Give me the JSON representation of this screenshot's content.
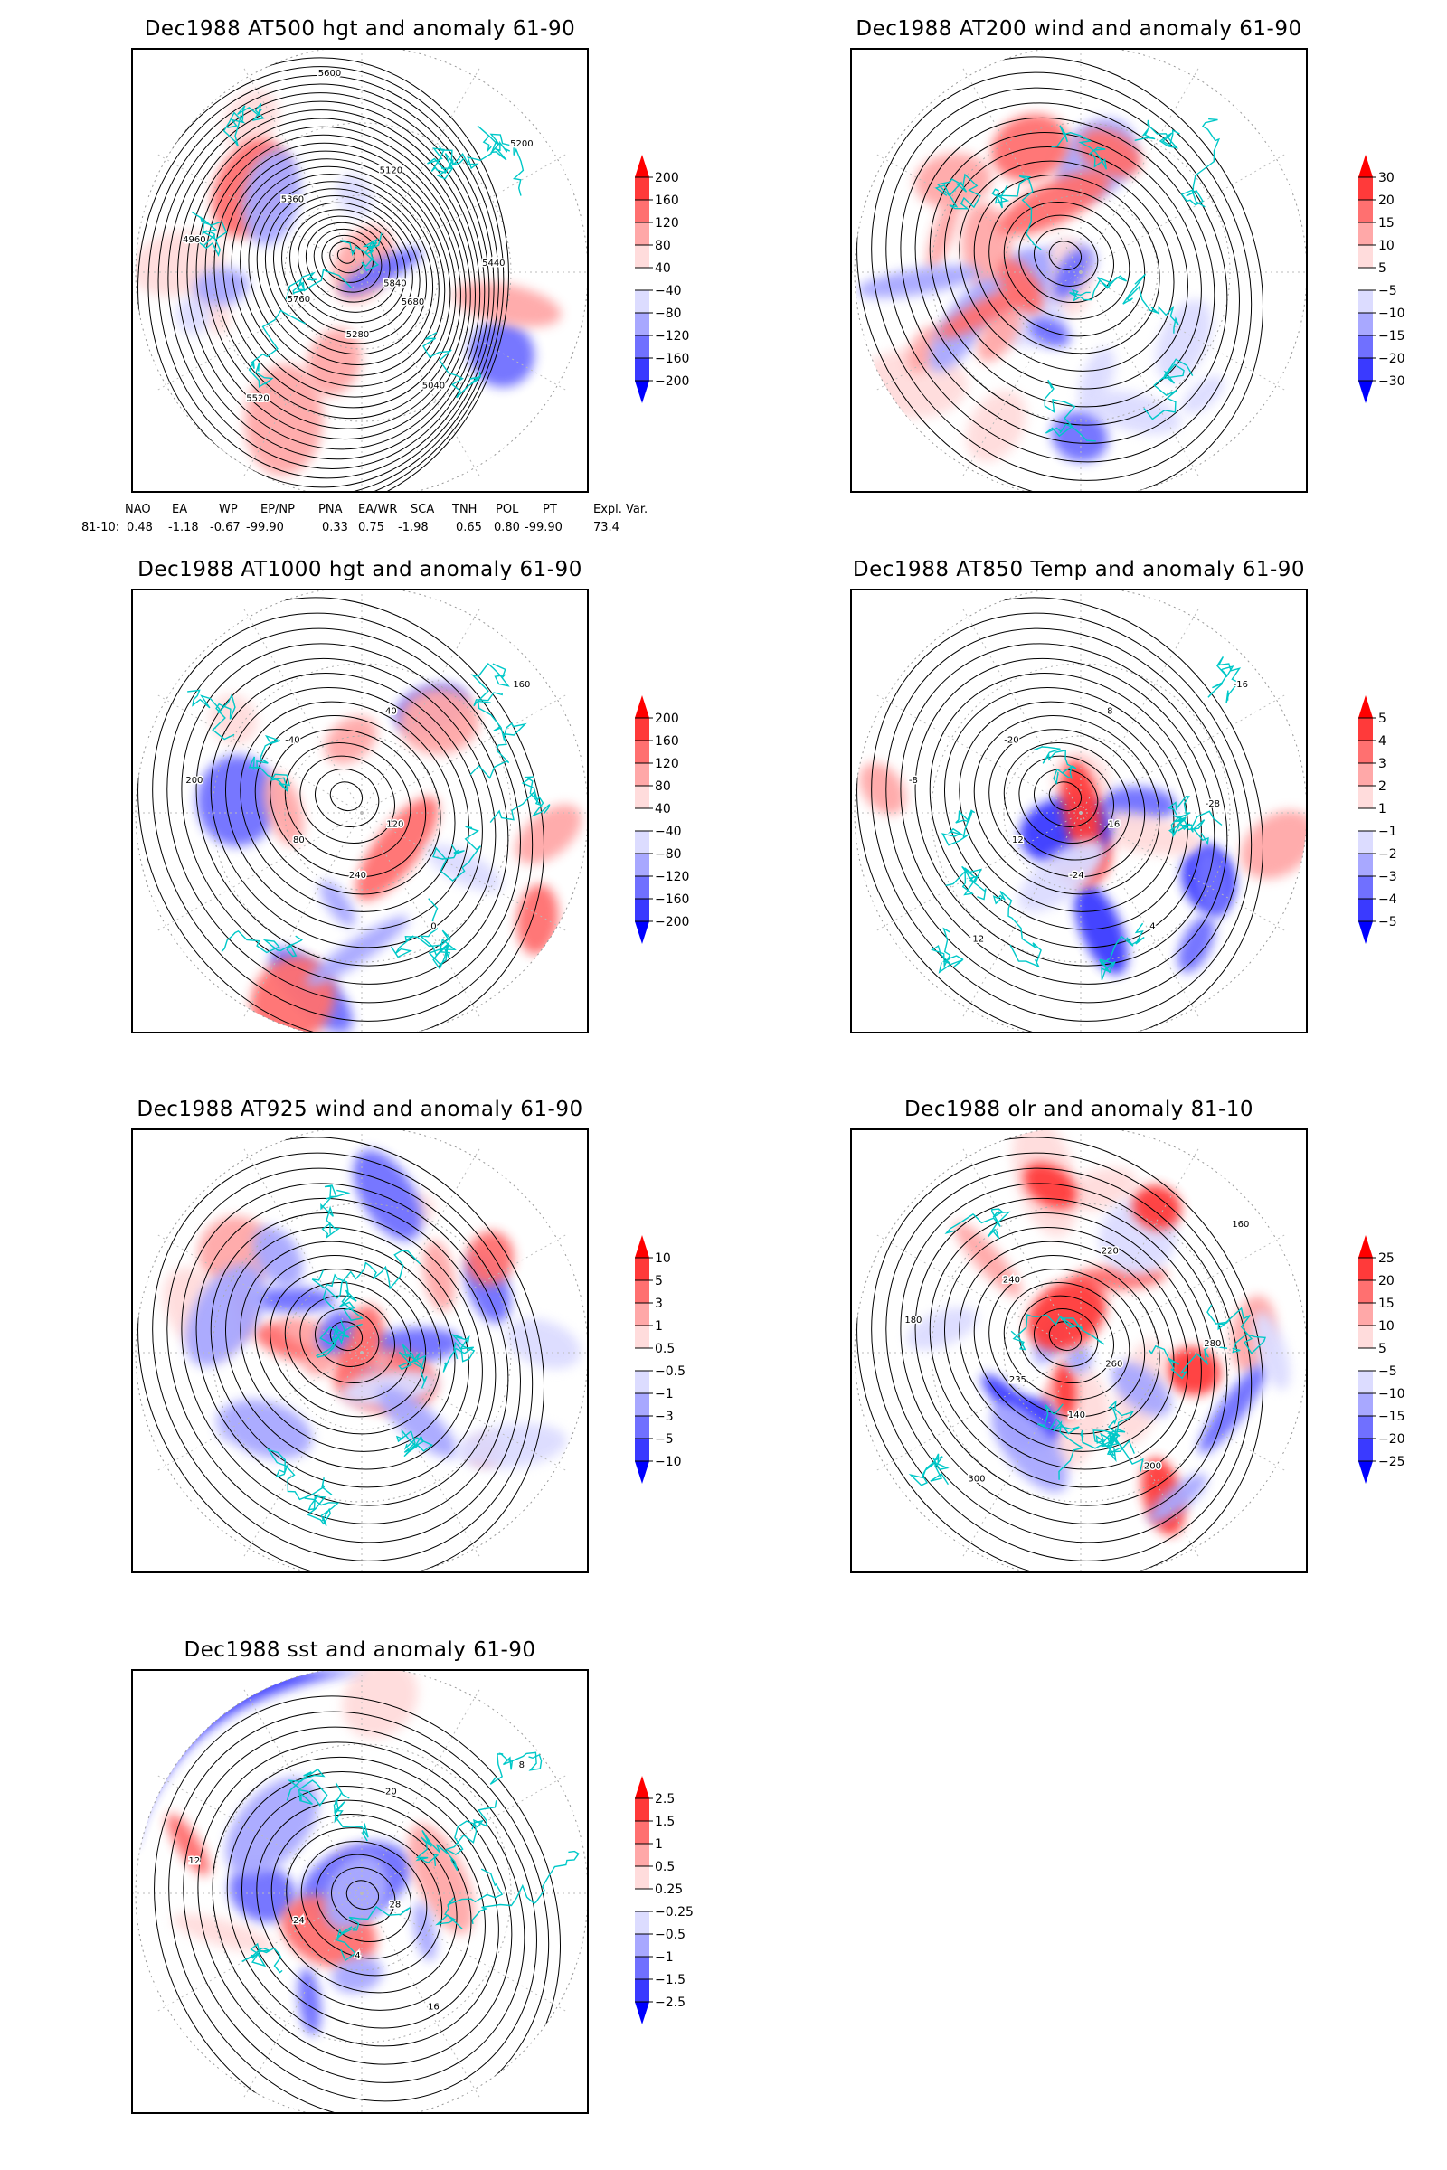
{
  "colors": {
    "pos": [
      "#ff0000",
      "#ff3a3a",
      "#ff7070",
      "#ffa8a8",
      "#ffdcdc"
    ],
    "neg": [
      "#dcdcff",
      "#a8a8ff",
      "#7070ff",
      "#3a3aff",
      "#0000ff"
    ],
    "coast": "#00c8c8"
  },
  "chart_data": [
    {
      "type": "heatmap",
      "title": "Dec1988 AT500 hgt and anomaly 61-90",
      "colorbar": [
        "200",
        "160",
        "120",
        "80",
        "40",
        "-40",
        "-80",
        "-120",
        "-160",
        "-200"
      ],
      "contour_labels": [
        "5840",
        "5760",
        "5120",
        "5040",
        "4960",
        "5200",
        "5280",
        "5360",
        "5440",
        "5520",
        "5600",
        "5680"
      ]
    },
    {
      "type": "heatmap",
      "title": "Dec1988 AT200 wind and anomaly 61-90",
      "colorbar": [
        "30",
        "20",
        "15",
        "10",
        "5",
        "-5",
        "-10",
        "-15",
        "-20",
        "-30"
      ],
      "contour_labels": []
    },
    {
      "type": "heatmap",
      "title": "Dec1988 AT1000 hgt and anomaly 61-90",
      "colorbar": [
        "200",
        "160",
        "120",
        "80",
        "40",
        "-40",
        "-80",
        "-120",
        "-160",
        "-200"
      ],
      "contour_labels": [
        "120",
        "80",
        "40",
        "0",
        "200",
        "160",
        "240",
        "-40"
      ]
    },
    {
      "type": "heatmap",
      "title": "Dec1988 AT850 Temp and anomaly 61-90",
      "colorbar": [
        "5",
        "4",
        "3",
        "2",
        "1",
        "-1",
        "-2",
        "-3",
        "-4",
        "-5"
      ],
      "contour_labels": [
        "16",
        "12",
        "8",
        "4",
        "-8",
        "-16",
        "-24",
        "-20",
        "-28",
        "-12"
      ]
    },
    {
      "type": "heatmap",
      "title": "Dec1988 AT925 wind and anomaly 61-90",
      "colorbar": [
        "10",
        "5",
        "3",
        "1",
        "0.5",
        "-0.5",
        "-1",
        "-3",
        "-5",
        "-10"
      ],
      "contour_labels": []
    },
    {
      "type": "heatmap",
      "title": "Dec1988 olr and anomaly 81-10",
      "colorbar": [
        "25",
        "20",
        "15",
        "10",
        "5",
        "-5",
        "-10",
        "-15",
        "-20",
        "-25"
      ],
      "contour_labels": [
        "260",
        "235",
        "220",
        "200",
        "180",
        "160",
        "140",
        "240",
        "280",
        "300"
      ]
    },
    {
      "type": "heatmap",
      "title": "Dec1988 sst and anomaly 61-90",
      "colorbar": [
        "2.5",
        "1.5",
        "1",
        "0.5",
        "0.25",
        "-0.25",
        "-0.5",
        "-1",
        "-1.5",
        "-2.5"
      ],
      "contour_labels": [
        "28",
        "24",
        "20",
        "16",
        "12",
        "8",
        "4"
      ]
    }
  ],
  "indices": {
    "headers": [
      "NAO",
      "EA",
      "WP",
      "EP/NP",
      "PNA",
      "EA/WR",
      "SCA",
      "TNH",
      "POL",
      "PT",
      "Expl. Var."
    ],
    "row_label": "81-10:",
    "values": [
      "0.48",
      "-1.18",
      "-0.67",
      "-99.90",
      "0.33",
      "0.75",
      "-1.98",
      "0.65",
      "0.80",
      "-99.90",
      "73.4"
    ]
  }
}
